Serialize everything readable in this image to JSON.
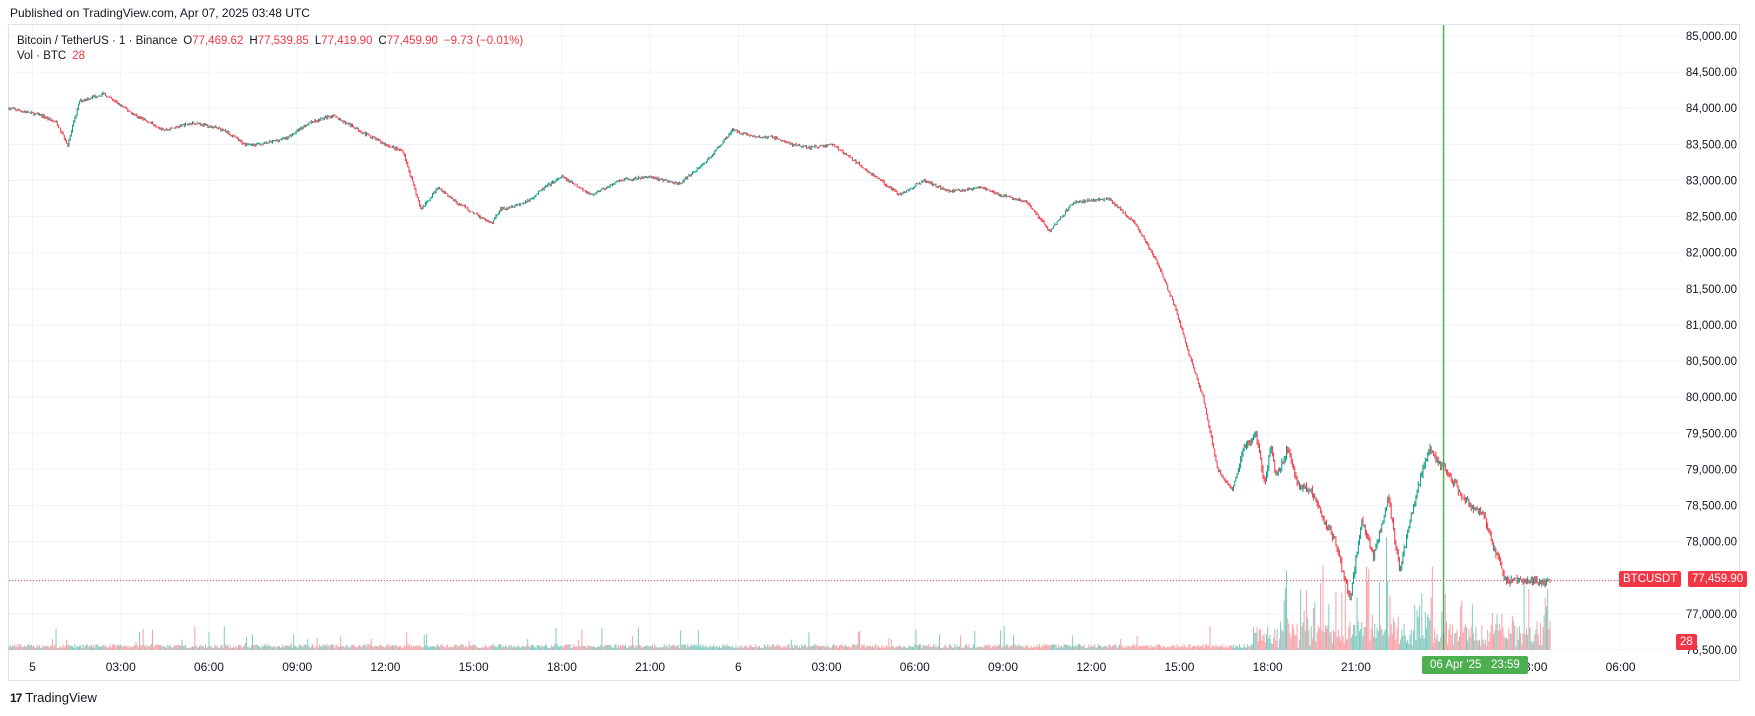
{
  "header": {
    "published": "Published on TradingView.com, Apr 07, 2025 03:48 UTC"
  },
  "legend": {
    "symbol": "Bitcoin / TetherUS · 1 · Binance",
    "o_label": "O",
    "o_value": "77,469.62",
    "h_label": "H",
    "h_value": "77,539.85",
    "l_label": "L",
    "l_value": "77,419.90",
    "c_label": "C",
    "c_value": "77,459.90",
    "change": "−9.73 (−0.01%)",
    "vol_label": "Vol · BTC",
    "vol_value": "28"
  },
  "footer": {
    "brand": "TradingView",
    "logo_text": "17"
  },
  "tags": {
    "symbol_tag": "BTCUSDT",
    "price_tag": "77,459.90",
    "volume_tag": "28",
    "crosshair_date": "06 Apr '25",
    "crosshair_time": "23:59"
  },
  "colors": {
    "up": "#089981",
    "down": "#f23645",
    "crosshair": "#4caf50",
    "grid": "#f0f3fa",
    "text": "#131722",
    "vol_up": "#7fcabf",
    "vol_down": "#f7a1a8"
  },
  "chart_data": {
    "type": "line",
    "title": "Bitcoin / TetherUS · 1 · Binance",
    "ylim": [
      76500,
      85000
    ],
    "y_ticks": [
      "85,000.00",
      "84,500.00",
      "84,000.00",
      "83,500.00",
      "83,000.00",
      "82,500.00",
      "82,000.00",
      "81,500.00",
      "81,000.00",
      "80,500.00",
      "80,000.00",
      "79,500.00",
      "79,000.00",
      "78,500.00",
      "78,000.00",
      "77,000.00",
      "76,500.00"
    ],
    "y_tick_values": [
      85000,
      84500,
      84000,
      83500,
      83000,
      82500,
      82000,
      81500,
      81000,
      80500,
      80000,
      79500,
      79000,
      78500,
      78000,
      77000,
      76500
    ],
    "x_tick_labels": [
      "5",
      "03:00",
      "06:00",
      "09:00",
      "12:00",
      "15:00",
      "18:00",
      "21:00",
      "6",
      "03:00",
      "06:00",
      "09:00",
      "12:00",
      "15:00",
      "18:00",
      "21:00",
      "03:00",
      "06:00"
    ],
    "x_tick_hours": [
      0,
      3,
      6,
      9,
      12,
      15,
      18,
      21,
      24,
      27,
      30,
      33,
      36,
      39,
      42,
      45,
      51,
      54
    ],
    "crosshair_hour": 47.98,
    "last_price": 77459.9,
    "x_range_hours": [
      -0.8,
      55
    ],
    "series": [
      {
        "x": [
          -0.8,
          0.3,
          0.8,
          1.2,
          1.6,
          2.4,
          3.5,
          4.5,
          5.5,
          6.5,
          7.2,
          7.8,
          8.7,
          9.4,
          10.2,
          11.3,
          12,
          12.6,
          13.2,
          13.8,
          14.4,
          15.6,
          15.9,
          16.8,
          17.4,
          18,
          19,
          20,
          21,
          22,
          23,
          23.8,
          24.6,
          25.2,
          25.8,
          26.4,
          27.2,
          28.5,
          29.5,
          30.3,
          31.2,
          32.3,
          32.9,
          33.8,
          34.6,
          35.4,
          36.6,
          37.5,
          38.2,
          38.8,
          39.4,
          39.8,
          40.3,
          40.8,
          41.2,
          41.6,
          41.9,
          42.1,
          42.3,
          42.7,
          43,
          43.5,
          43.9,
          44.3,
          44.8,
          45.2,
          45.6,
          46.1,
          46.5,
          46.9,
          47.2,
          47.5,
          47.8,
          48.1,
          48.5,
          48.9,
          49.3,
          49.7,
          50.1,
          50.5,
          50.9,
          51.3,
          51.6
        ],
        "y": [
          84000,
          83900,
          83800,
          83500,
          84100,
          84200,
          83900,
          83700,
          83800,
          83700,
          83500,
          83500,
          83600,
          83800,
          83900,
          83650,
          83500,
          83400,
          82600,
          82900,
          82700,
          82400,
          82600,
          82700,
          82900,
          83050,
          82800,
          83000,
          83050,
          82950,
          83300,
          83700,
          83600,
          83600,
          83500,
          83450,
          83500,
          83100,
          82800,
          83000,
          82850,
          82900,
          82800,
          82700,
          82300,
          82700,
          82750,
          82400,
          81900,
          81300,
          80500,
          80000,
          79000,
          78700,
          79300,
          79500,
          78800,
          79300,
          78900,
          79300,
          78800,
          78700,
          78300,
          78000,
          77200,
          78300,
          77800,
          78600,
          77600,
          78400,
          78900,
          79300,
          79100,
          79000,
          78700,
          78500,
          78400,
          77900,
          77459.9,
          77459.9,
          77459.9,
          77459.9,
          77459.9
        ]
      }
    ]
  }
}
